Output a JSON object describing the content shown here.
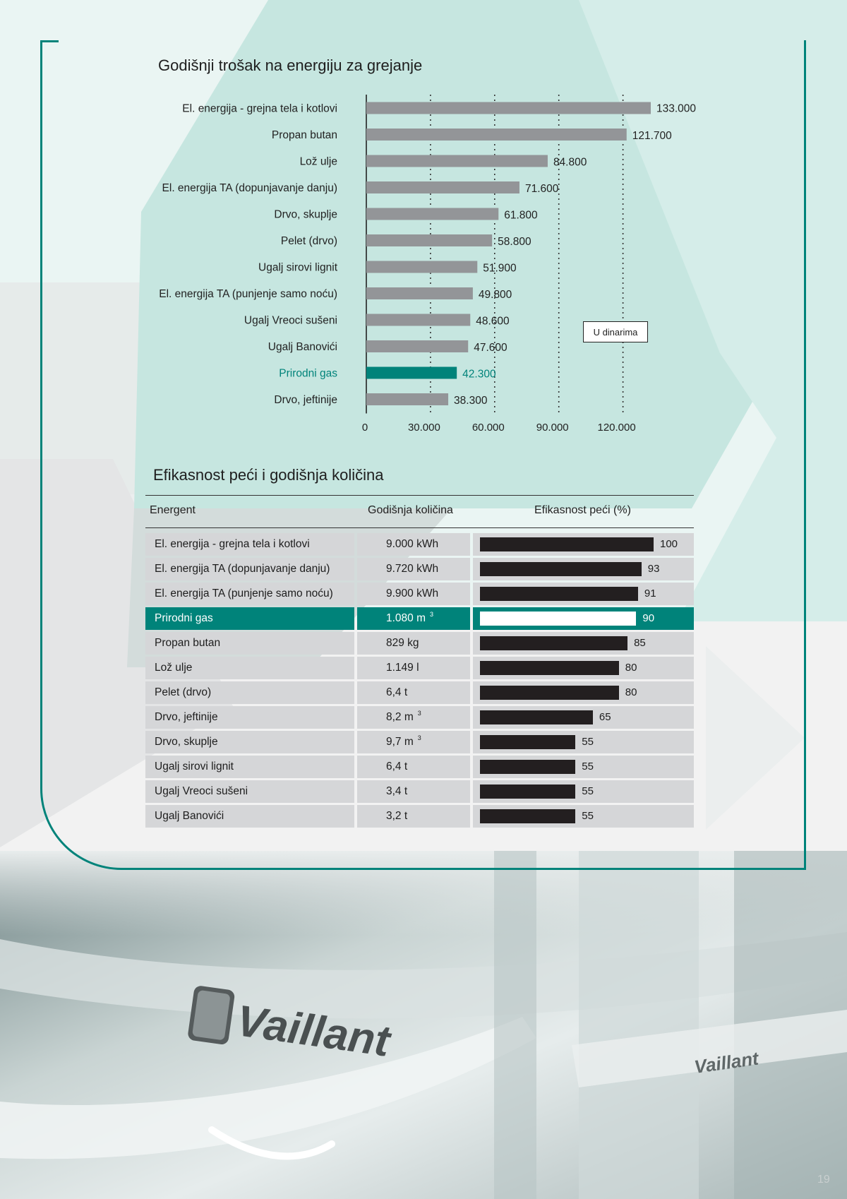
{
  "page_number": "19",
  "colors": {
    "accent": "#00837a",
    "bar_gray": "#939598",
    "bar_dark": "#231f20",
    "row_bg": "#d5d6d8",
    "bg_mint": "#c6e6e0"
  },
  "chart_data": [
    {
      "type": "bar",
      "orientation": "horizontal",
      "title": "Godišnji trošak na energiju za grejanje",
      "categories": [
        "El. energija - grejna tela i kotlovi",
        "Propan butan",
        "Lož ulje",
        "El. energija TA (dopunjavanje danju)",
        "Drvo, skuplje",
        "Pelet (drvo)",
        "Ugalj sirovi lignit",
        "El. energija TA (punjenje samo noću)",
        "Ugalj Vreoci sušeni",
        "Ugalj Banovići",
        "Prirodni gas",
        "Drvo, jeftinije"
      ],
      "values": [
        133000,
        121700,
        84800,
        71600,
        61800,
        58800,
        51900,
        49800,
        48600,
        47600,
        42300,
        38300
      ],
      "value_labels": [
        "133.000",
        "121.700",
        "84.800",
        "71.600",
        "61.800",
        "58.800",
        "51.900",
        "49.800",
        "48.600",
        "47.600",
        "42.300",
        "38.300"
      ],
      "highlight": "Prirodni gas",
      "xlim": [
        0,
        133000
      ],
      "xticks": [
        0,
        30000,
        60000,
        90000,
        120000
      ],
      "xtick_labels": [
        "0",
        "30.000",
        "60.000",
        "90.000",
        "120.000"
      ],
      "grid": "vertical dotted",
      "annotation": "U dinarima"
    },
    {
      "type": "table",
      "title": "Efikasnost peći i godišnja količina",
      "columns": [
        "Energent",
        "Godišnja količina",
        "Efikasnost peći (%)"
      ],
      "rows": [
        {
          "energent": "El. energija - grejna tela i kotlovi",
          "amount": "9.000 kWh",
          "sup": "",
          "efficiency": 100
        },
        {
          "energent": "El. energija TA (dopunjavanje danju)",
          "amount": "9.720 kWh",
          "sup": "",
          "efficiency": 93
        },
        {
          "energent": "El. energija TA (punjenje samo noću)",
          "amount": "9.900 kWh",
          "sup": "",
          "efficiency": 91
        },
        {
          "energent": "Prirodni gas",
          "amount": "1.080 m",
          "sup": "3",
          "efficiency": 90,
          "highlight": true
        },
        {
          "energent": "Propan butan",
          "amount": "829 kg",
          "sup": "",
          "efficiency": 85
        },
        {
          "energent": "Lož ulje",
          "amount": "1.149 l",
          "sup": "",
          "efficiency": 80
        },
        {
          "energent": "Pelet (drvo)",
          "amount": "6,4 t",
          "sup": "",
          "efficiency": 80
        },
        {
          "energent": "Drvo, jeftinije",
          "amount": "8,2 m",
          "sup": "3",
          "efficiency": 65
        },
        {
          "energent": "Drvo, skuplje",
          "amount": "9,7 m",
          "sup": "3",
          "efficiency": 55
        },
        {
          "energent": "Ugalj sirovi lignit",
          "amount": "6,4 t",
          "sup": "",
          "efficiency": 55
        },
        {
          "energent": "Ugalj Vreoci sušeni",
          "amount": "3,4 t",
          "sup": "",
          "efficiency": 55
        },
        {
          "energent": "Ugalj Banovići",
          "amount": "3,2 t",
          "sup": "",
          "efficiency": 55
        }
      ]
    }
  ]
}
